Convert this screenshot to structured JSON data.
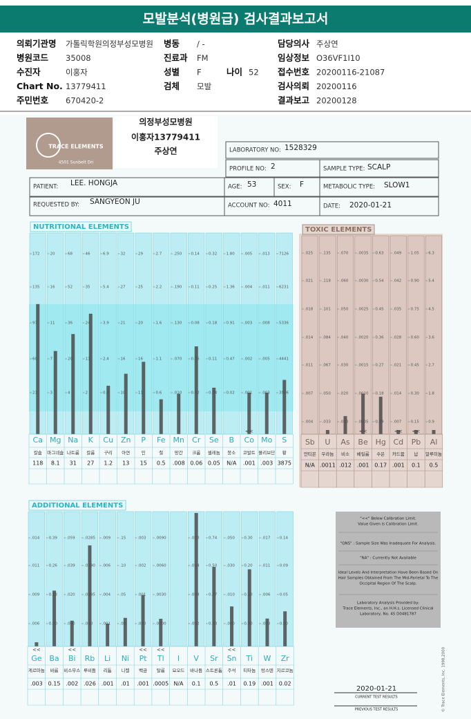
{
  "header": {
    "title": "모발분석(병원급) 검사결과보고서"
  },
  "info": {
    "rows": [
      {
        "col1": {
          "label": "의뢰기관명",
          "value": "가톨릭학원의정부성모병원"
        },
        "col2": {
          "label": "병동",
          "value": "/ -"
        },
        "col4": {
          "label": "담당의사",
          "value": "주상연"
        }
      },
      {
        "col1": {
          "label": "병원코드",
          "value": "35008"
        },
        "col2": {
          "label": "진료과",
          "value": "FM"
        },
        "col4": {
          "label": "임상정보",
          "value": "O36VF1I10"
        }
      },
      {
        "col1": {
          "label": "수진자",
          "value": "이홍자"
        },
        "col2": {
          "label": "성별",
          "value": "F"
        },
        "col3": {
          "label": "나이",
          "value": "52"
        },
        "col4": {
          "label": "접수번호",
          "value": "20200116-21087"
        }
      },
      {
        "col1": {
          "label": "Chart No.",
          "value": "13779411"
        },
        "col2": {
          "label": "검체",
          "value": "모발"
        },
        "col4": {
          "label": "검사의뢰",
          "value": "20200116"
        }
      },
      {
        "col1": {
          "label": "주민번호",
          "value": "670420-2"
        },
        "col4": {
          "label": "결과보고",
          "value": "20200128"
        }
      }
    ]
  },
  "scan": {
    "logo": {
      "name": "TRACE ELEMENTS",
      "address": "4501 Sunbelt Dri"
    },
    "stamp": {
      "hospital": "의정부성모병원",
      "patient": "이홍자13779411",
      "doctor": "주상연"
    },
    "lab": {
      "laboratory_no": {
        "label": "LABORATORY NO:",
        "value": "1528329"
      },
      "profile_no": {
        "label": "PROFILE NO:",
        "value": "2"
      },
      "sample_type": {
        "label": "SAMPLE TYPE:",
        "value": "SCALP"
      },
      "patient": {
        "label": "PATIENT:",
        "value": "LEE. HONGJA"
      },
      "age": {
        "label": "AGE:",
        "value": "53"
      },
      "sex": {
        "label": "SEX:",
        "value": "F"
      },
      "metabolic_type": {
        "label": "METABOLIC TYPE:",
        "value": "SLOW1"
      },
      "requested_by": {
        "label": "REQUESTED BY:",
        "value": "SANGYEON JU"
      },
      "account_no": {
        "label": "ACCOUNT NO:",
        "value": "4011"
      },
      "date": {
        "label": "DATE:",
        "value": "2020-01-21"
      }
    },
    "nutritional": {
      "title": "NUTRITIONAL ELEMENTS",
      "elements": [
        {
          "symbol": "Ca",
          "name": "칼슘",
          "ticks": [
            "172",
            "135",
            "97",
            "60",
            "23"
          ],
          "result": "118"
        },
        {
          "symbol": "Mg",
          "name": "마그네슘",
          "ticks": [
            "20",
            "16",
            "11",
            "7",
            "3"
          ],
          "result": "8.1"
        },
        {
          "symbol": "Na",
          "name": "나트륨",
          "ticks": [
            "68",
            "52",
            "36",
            "20",
            "4"
          ],
          "result": "31"
        },
        {
          "symbol": "K",
          "name": "칼륨",
          "ticks": [
            "46",
            "35",
            "24",
            "13",
            "2"
          ],
          "result": "27"
        },
        {
          "symbol": "Cu",
          "name": "구리",
          "ticks": [
            "6.9",
            "5.4",
            "3.9",
            "2.4",
            "0.9"
          ],
          "result": "1.2"
        },
        {
          "symbol": "Zn",
          "name": "아연",
          "ticks": [
            "32",
            "27",
            "21",
            "16",
            "10"
          ],
          "result": "13"
        },
        {
          "symbol": "P",
          "name": "인",
          "ticks": [
            "29",
            "25",
            "20",
            "16",
            "11"
          ],
          "result": "15"
        },
        {
          "symbol": "Fe",
          "name": "철",
          "ticks": [
            "2.7",
            "2.2",
            "1.6",
            "1.1",
            "0.6"
          ],
          "result": "0.5"
        },
        {
          "symbol": "Mn",
          "name": "망간",
          "ticks": [
            ".250",
            ".190",
            ".130",
            ".070",
            ".010"
          ],
          "result": ".008"
        },
        {
          "symbol": "Cr",
          "name": "크롬",
          "ticks": [
            "0.14",
            "0.11",
            "0.08",
            "0.05",
            "0.02"
          ],
          "result": "0.06"
        },
        {
          "symbol": "Se",
          "name": "셀레늄",
          "ticks": [
            "0.32",
            "0.25",
            "0.18",
            "0.11",
            "0.04"
          ],
          "result": "0.05"
        },
        {
          "symbol": "B",
          "name": "붕소",
          "ticks": [
            "1.80",
            "1.36",
            "0.91",
            "0.47",
            "0.02"
          ],
          "result": "N/A"
        },
        {
          "symbol": "Co",
          "name": "코발트",
          "ticks": [
            ".005",
            ".004",
            ".003",
            ".002",
            ".001"
          ],
          "result": ".001",
          "flag": "<<"
        },
        {
          "symbol": "Mo",
          "name": "몰리브단",
          "ticks": [
            ".013",
            ".011",
            ".008",
            ".005",
            ".003"
          ],
          "result": ".003"
        },
        {
          "symbol": "S",
          "name": "황",
          "ticks": [
            "7126",
            "6231",
            "5336",
            "4441",
            "3546"
          ],
          "result": "3875"
        }
      ]
    },
    "toxic": {
      "title": "TOXIC ELEMENTS",
      "elements": [
        {
          "symbol": "Sb",
          "name": "안티몬",
          "ticks": [
            ".025",
            ".021",
            ".018",
            ".014",
            ".011",
            ".007",
            ".004"
          ],
          "result": "N/A"
        },
        {
          "symbol": "U",
          "name": "우라늄",
          "ticks": [
            ".135",
            ".118",
            ".101",
            ".084",
            ".067",
            ".050",
            ".033"
          ],
          "result": ".0011"
        },
        {
          "symbol": "As",
          "name": "비소",
          "ticks": [
            ".070",
            ".060",
            ".050",
            ".040",
            ".030",
            ".020",
            ".010"
          ],
          "result": ".012"
        },
        {
          "symbol": "Be",
          "name": "베릴륨",
          "ticks": [
            ".0035",
            ".0030",
            ".0025",
            ".0020",
            ".0015",
            ".0010",
            ".0005"
          ],
          "result": ".001",
          "flag": "<<"
        },
        {
          "symbol": "Hg",
          "name": "수은",
          "ticks": [
            "0.63",
            "0.54",
            "0.45",
            "0.36",
            "0.27",
            "0.18",
            "0.09"
          ],
          "result": "0.17"
        },
        {
          "symbol": "Cd",
          "name": "카드뮴",
          "ticks": [
            ".049",
            ".042",
            ".035",
            ".028",
            ".021",
            ".014",
            ".007"
          ],
          "result": ".001",
          "flag": "<<"
        },
        {
          "symbol": "Pb",
          "name": "납",
          "ticks": [
            "1.05",
            "0.90",
            "0.75",
            "0.60",
            "0.45",
            "0.30",
            "0.15"
          ],
          "result": "0.1",
          "flag": "<<"
        },
        {
          "symbol": "Al",
          "name": "알루미늄",
          "ticks": [
            "6.3",
            "5.4",
            "4.5",
            "3.6",
            "2.7",
            "1.8",
            "0.9"
          ],
          "result": "0.5"
        }
      ]
    },
    "additional": {
      "title": "ADDITIONAL ELEMENTS",
      "elements": [
        {
          "symbol": "Ge",
          "name": "게르마늄",
          "ticks": [
            ".014",
            ".011",
            ".009",
            ".006"
          ],
          "result": ".003",
          "flag": "<<"
        },
        {
          "symbol": "Ba",
          "name": "바륨",
          "ticks": [
            "0.39",
            "0.26",
            "0.13",
            "0.00"
          ],
          "result": "0.15"
        },
        {
          "symbol": "Bi",
          "name": "비스무스",
          "ticks": [
            ".059",
            ".039",
            ".020",
            ".000"
          ],
          "result": ".002",
          "flag": "<<"
        },
        {
          "symbol": "Rb",
          "name": "루비듐",
          "ticks": [
            ".0285",
            ".0190",
            ".0095",
            ".000"
          ],
          "result": ".026"
        },
        {
          "symbol": "Li",
          "name": "리튬",
          "ticks": [
            ".009",
            ".006",
            ".004",
            ".001"
          ],
          "result": ".001"
        },
        {
          "symbol": "Ni",
          "name": "니켈",
          "ticks": [
            ".15",
            ".10",
            ".05",
            ".00"
          ],
          "result": ".01"
        },
        {
          "symbol": "Pt",
          "name": "백금",
          "ticks": [
            ".003",
            ".002",
            ".001",
            ".000"
          ],
          "result": ".001",
          "flag": "<<"
        },
        {
          "symbol": "Tl",
          "name": "탈륨",
          "ticks": [
            ".0090",
            ".0060",
            ".0030",
            ".0000"
          ],
          "result": ".0005",
          "flag": "<<"
        },
        {
          "symbol": "I",
          "name": "요오드",
          "ticks": [],
          "result": "N/A"
        },
        {
          "symbol": "V",
          "name": "바나듐",
          "ticks": [
            ".020",
            ".014",
            ".008",
            ".002"
          ],
          "result": "0.1"
        },
        {
          "symbol": "Sr",
          "name": "스트론튬",
          "ticks": [
            "0.74",
            "0.50",
            "0.27",
            "0.03"
          ],
          "result": "0.5"
        },
        {
          "symbol": "Sn",
          "name": "주석",
          "ticks": [
            ".050",
            ".030",
            ".010",
            ".000"
          ],
          "result": ".01",
          "flag": "<<"
        },
        {
          "symbol": "Ti",
          "name": "티타늄",
          "ticks": [
            "0.30",
            "0.20",
            "0.10",
            "0.00"
          ],
          "result": "0.19"
        },
        {
          "symbol": "W",
          "name": "텅스텐",
          "ticks": [
            ".017",
            ".011",
            ".006",
            ".000"
          ],
          "result": ".001"
        },
        {
          "symbol": "Zr",
          "name": "지르코늄",
          "ticks": [
            "0.14",
            "0.09",
            "0.05",
            "0.00"
          ],
          "result": "0.02"
        }
      ]
    },
    "legend": [
      "\"<<\" Below Calibration Limit.",
      "Value Given is Calibration Limit.",
      "\"QNS\" : Sample Size Was Inadequate For Analysis.",
      "\"NA\" : Currently Not Available",
      "Ideal Levels And Interpretation Have Been Based On",
      "Hair Samples Obtained From The Mid-Parietal To The",
      "Occipital Region Of The Scalp.",
      "Laboratory Analysis Provided by:",
      "Trace Elements, Inc., an H.H.s. Licensed Clinical",
      "Laboratory, No. 45 D0481787"
    ],
    "footer": {
      "date": "2020-01-21",
      "current": "CURRENT TEST RESULTS",
      "previous": "PREVIOUS TEST RESULTS",
      "copyright": "© Trace Elements, Inc. 1998,2000"
    }
  }
}
